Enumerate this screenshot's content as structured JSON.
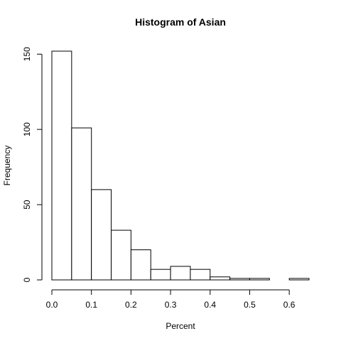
{
  "chart_data": {
    "type": "bar",
    "title": "Histogram of Asian",
    "xlabel": "Percent",
    "ylabel": "Frequency",
    "bins": [
      {
        "start": 0.0,
        "end": 0.05,
        "count": 152
      },
      {
        "start": 0.05,
        "end": 0.1,
        "count": 101
      },
      {
        "start": 0.1,
        "end": 0.15,
        "count": 60
      },
      {
        "start": 0.15,
        "end": 0.2,
        "count": 33
      },
      {
        "start": 0.2,
        "end": 0.25,
        "count": 20
      },
      {
        "start": 0.25,
        "end": 0.3,
        "count": 7
      },
      {
        "start": 0.3,
        "end": 0.35,
        "count": 9
      },
      {
        "start": 0.35,
        "end": 0.4,
        "count": 7
      },
      {
        "start": 0.4,
        "end": 0.45,
        "count": 2
      },
      {
        "start": 0.45,
        "end": 0.5,
        "count": 1
      },
      {
        "start": 0.5,
        "end": 0.55,
        "count": 1
      },
      {
        "start": 0.55,
        "end": 0.6,
        "count": 0
      },
      {
        "start": 0.6,
        "end": 0.65,
        "count": 1
      }
    ],
    "xticks": [
      0.0,
      0.1,
      0.2,
      0.3,
      0.4,
      0.5,
      0.6
    ],
    "xtick_labels": [
      "0.0",
      "0.1",
      "0.2",
      "0.3",
      "0.4",
      "0.5",
      "0.6"
    ],
    "yticks": [
      0,
      50,
      100,
      150
    ],
    "ytick_labels": [
      "0",
      "50",
      "100",
      "150"
    ],
    "xlim": [
      0.0,
      0.65
    ],
    "ylim": [
      0,
      152
    ],
    "grid": false,
    "colors": {
      "bar_fill": "#ffffff",
      "bar_stroke": "#000000"
    }
  }
}
